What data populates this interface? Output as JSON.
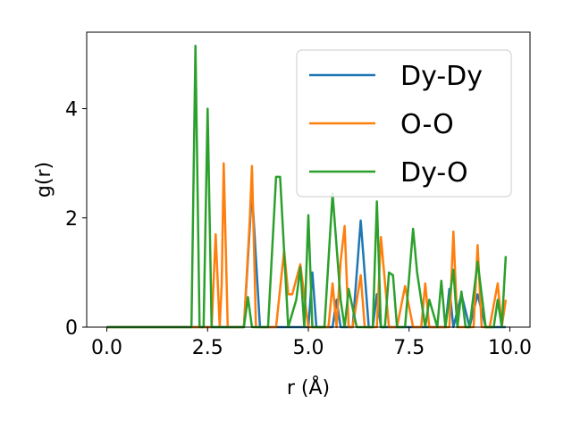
{
  "chart_data": {
    "type": "line",
    "title": "",
    "xlabel": "r (Å)",
    "ylabel": "g(r)",
    "xlim": [
      -0.5,
      10.5
    ],
    "ylim": [
      0,
      5.4
    ],
    "xticks": [
      0.0,
      2.5,
      5.0,
      7.5,
      10.0
    ],
    "xtick_labels": [
      "0.0",
      "2.5",
      "5.0",
      "7.5",
      "10.0"
    ],
    "yticks": [
      0,
      2,
      4
    ],
    "ytick_labels": [
      "0",
      "2",
      "4"
    ],
    "grid": false,
    "legend_position": "top-right",
    "series": [
      {
        "name": "Dy-Dy",
        "color": "#1f77b4",
        "x": [
          0.0,
          3.4,
          3.6,
          3.8,
          4.9,
          5.0,
          5.1,
          5.2,
          5.6,
          5.7,
          5.8,
          6.1,
          6.3,
          6.5,
          6.6,
          6.7,
          6.8,
          8.4,
          8.5,
          8.6,
          8.8,
          9.0,
          9.2,
          9.4,
          9.9
        ],
        "y": [
          0.0,
          0.0,
          2.5,
          0.0,
          0.0,
          0.0,
          1.0,
          0.0,
          0.0,
          0.5,
          0.0,
          0.0,
          1.95,
          0.0,
          0.0,
          0.6,
          0.0,
          0.0,
          0.7,
          0.0,
          0.6,
          0.0,
          0.6,
          0.0,
          0.0
        ]
      },
      {
        "name": "O-O",
        "color": "#ff7f0e",
        "x": [
          0.0,
          2.5,
          2.6,
          2.7,
          2.8,
          2.85,
          2.9,
          3.0,
          3.4,
          3.55,
          3.6,
          3.7,
          3.9,
          4.2,
          4.4,
          4.5,
          4.6,
          4.8,
          5.0,
          5.2,
          5.4,
          5.5,
          5.6,
          5.7,
          5.8,
          5.9,
          6.0,
          6.1,
          6.3,
          6.4,
          6.5,
          6.6,
          6.7,
          6.8,
          7.0,
          7.2,
          7.4,
          7.6,
          7.8,
          7.9,
          8.0,
          8.2,
          8.4,
          8.5,
          8.6,
          8.7,
          8.9,
          9.1,
          9.2,
          9.3,
          9.5,
          9.7,
          9.8,
          9.9
        ],
        "y": [
          0.0,
          0.0,
          0.0,
          1.7,
          0.0,
          0.8,
          3.0,
          0.0,
          0.0,
          2.0,
          2.95,
          0.0,
          0.0,
          0.0,
          1.4,
          0.6,
          0.6,
          1.15,
          0.0,
          0.0,
          0.0,
          0.0,
          0.8,
          0.0,
          1.2,
          1.85,
          0.0,
          0.0,
          0.95,
          0.0,
          0.0,
          0.0,
          0.0,
          1.65,
          0.0,
          0.0,
          0.75,
          0.0,
          0.0,
          0.8,
          0.0,
          0.0,
          0.0,
          0.0,
          1.75,
          0.0,
          0.0,
          0.0,
          1.5,
          0.0,
          0.0,
          0.8,
          0.0,
          0.5
        ]
      },
      {
        "name": "Dy-O",
        "color": "#2ca02c",
        "x": [
          0.0,
          2.1,
          2.2,
          2.3,
          2.4,
          2.5,
          2.6,
          2.7,
          3.4,
          3.5,
          3.6,
          3.7,
          4.0,
          4.2,
          4.3,
          4.5,
          4.7,
          4.8,
          4.9,
          5.0,
          5.1,
          5.4,
          5.6,
          5.8,
          5.9,
          6.0,
          6.2,
          6.4,
          6.6,
          6.7,
          6.8,
          6.9,
          7.0,
          7.1,
          7.2,
          7.4,
          7.6,
          7.7,
          7.9,
          8.0,
          8.2,
          8.3,
          8.4,
          8.6,
          8.7,
          8.8,
          8.9,
          9.0,
          9.2,
          9.4,
          9.6,
          9.7,
          9.8,
          9.9
        ],
        "y": [
          0.0,
          0.0,
          5.15,
          0.0,
          0.0,
          4.0,
          0.0,
          0.0,
          0.0,
          0.55,
          0.0,
          0.0,
          0.0,
          2.75,
          2.75,
          0.0,
          0.5,
          1.1,
          0.0,
          2.05,
          0.0,
          0.0,
          2.45,
          0.5,
          0.0,
          0.7,
          0.0,
          0.0,
          0.0,
          2.3,
          0.0,
          0.0,
          1.0,
          0.95,
          0.0,
          0.0,
          1.8,
          1.0,
          0.0,
          0.5,
          0.0,
          0.85,
          0.0,
          1.05,
          0.0,
          0.65,
          0.0,
          0.0,
          1.2,
          0.0,
          0.0,
          0.5,
          0.0,
          1.3
        ]
      }
    ]
  }
}
